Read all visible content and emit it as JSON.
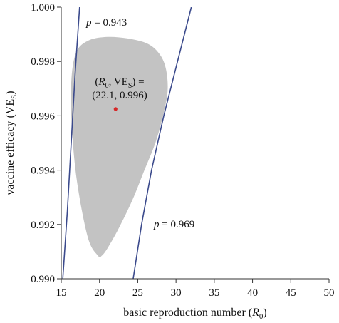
{
  "chart_data": {
    "type": "line",
    "title": "",
    "xlabel": "basic reproduction number (R0)",
    "xlabel_parts": {
      "main": "basic reproduction number (",
      "var": "R",
      "sub": "0",
      "close": ")"
    },
    "ylabel": "vaccine efficacy (VES)",
    "ylabel_parts": {
      "main": "vaccine efficacy (VE",
      "sub": "S",
      "close": ")"
    },
    "xlim": [
      15,
      50
    ],
    "ylim": [
      0.99,
      1.0
    ],
    "xticks": [
      15,
      20,
      25,
      30,
      35,
      40,
      45,
      50
    ],
    "yticks": [
      0.99,
      0.992,
      0.994,
      0.996,
      0.998,
      1.0
    ],
    "ytick_labels": [
      "0.990",
      "0.992",
      "0.994",
      "0.996",
      "0.998",
      "1.000"
    ],
    "grid": false,
    "colors": {
      "line": "#3b4a8c",
      "region": "#c3c3c3",
      "point": "#d62728",
      "axis": "#333333"
    },
    "series": [
      {
        "label_text": "p = 0.943",
        "label_parts": {
          "var": "p",
          "rest": " = 0.943"
        },
        "x": [
          15.2,
          15.8,
          16.3,
          16.8,
          17.4
        ],
        "y": [
          0.99,
          0.9925,
          0.995,
          0.9975,
          1.0
        ]
      },
      {
        "label_text": "p = 0.969",
        "label_parts": {
          "var": "p",
          "rest": " = 0.969"
        },
        "x": [
          24.4,
          25.5,
          26.8,
          28.4,
          30.2,
          32.0
        ],
        "y": [
          0.99,
          0.992,
          0.994,
          0.996,
          0.998,
          1.0
        ]
      }
    ],
    "confidence_region": {
      "x": [
        19.8,
        18.5,
        17.1,
        16.4,
        16.3,
        16.9,
        18.4,
        20.8,
        23.6,
        26.3,
        27.9,
        28.7,
        28.9,
        28.3,
        27.3,
        25.8,
        24.3,
        22.5,
        21.1,
        20.3,
        19.8
      ],
      "y": [
        0.99085,
        0.9915,
        0.9935,
        0.9955,
        0.9972,
        0.9983,
        0.99875,
        0.9989,
        0.99885,
        0.99865,
        0.99825,
        0.9977,
        0.9969,
        0.996,
        0.995,
        0.99395,
        0.9929,
        0.99185,
        0.99115,
        0.99085,
        0.99085
      ]
    },
    "estimate": {
      "x": 22.1,
      "y": 0.99625,
      "label_line1": {
        "open": "(",
        "var": "R",
        "sub": "0",
        "mid": ", VE",
        "sub2": "S",
        "close": ") ="
      },
      "label_line2": "(22.1, 0.996)"
    }
  }
}
